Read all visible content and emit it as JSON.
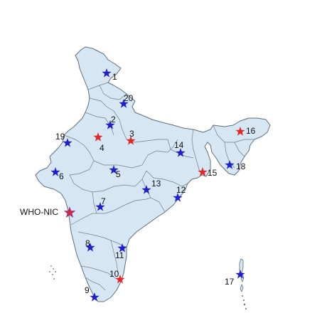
{
  "map": {
    "region": "India",
    "land_color": "#d6e7f3",
    "border_color": "#5d6d7c",
    "marker_colors": {
      "blue": "#1f1fcc",
      "red": "#e32626"
    },
    "sites": [
      {
        "label": "1",
        "color": "blue"
      },
      {
        "label": "2",
        "color": "blue"
      },
      {
        "label": "3",
        "color": "red"
      },
      {
        "label": "4",
        "color": "red"
      },
      {
        "label": "5",
        "color": "blue"
      },
      {
        "label": "6",
        "color": "blue"
      },
      {
        "label": "7",
        "color": "blue"
      },
      {
        "label": "8",
        "color": "blue"
      },
      {
        "label": "9",
        "color": "blue"
      },
      {
        "label": "10",
        "color": "red"
      },
      {
        "label": "11",
        "color": "blue"
      },
      {
        "label": "12",
        "color": "blue"
      },
      {
        "label": "13",
        "color": "blue"
      },
      {
        "label": "14",
        "color": "blue"
      },
      {
        "label": "15",
        "color": "red"
      },
      {
        "label": "16",
        "color": "red"
      },
      {
        "label": "17",
        "color": "blue"
      },
      {
        "label": "18",
        "color": "blue"
      },
      {
        "label": "19",
        "color": "blue"
      },
      {
        "label": "20",
        "color": "blue"
      },
      {
        "label": "WHO-NIC",
        "color": "red"
      }
    ]
  }
}
